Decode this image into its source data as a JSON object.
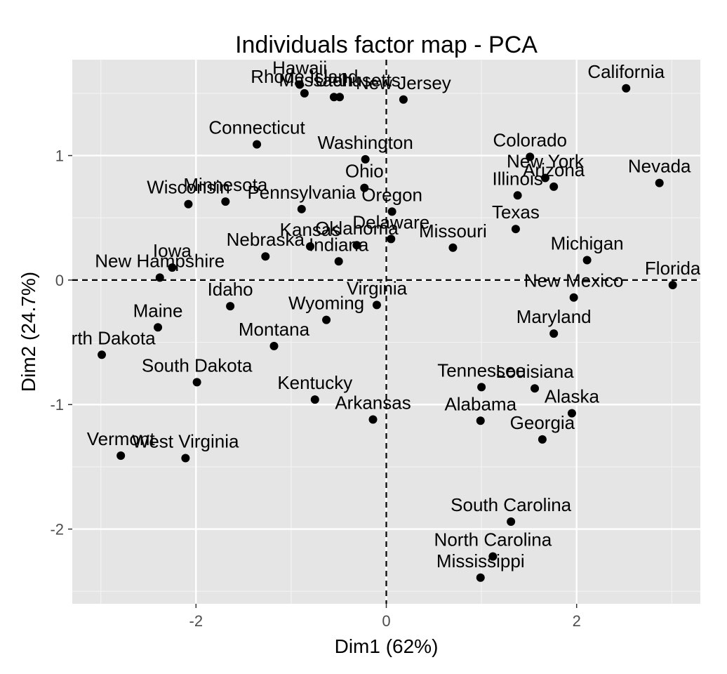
{
  "chart_data": {
    "type": "scatter",
    "title": "Individuals factor map - PCA",
    "xlabel": "Dim1 (62%)",
    "ylabel": "Dim2 (24.7%)",
    "xlim": [
      -3.3,
      3.3
    ],
    "ylim": [
      -2.6,
      1.77
    ],
    "xticks": [
      -2,
      0,
      2
    ],
    "yticks": [
      -2,
      -1,
      0,
      1
    ],
    "xtick_labels": [
      "-2",
      "0",
      "2"
    ],
    "ytick_labels": [
      "-2",
      "-1",
      "0",
      "1"
    ],
    "grid": true,
    "reference_lines": [
      {
        "axis": "x",
        "value": 0
      },
      {
        "axis": "y",
        "value": 0
      }
    ],
    "points": [
      {
        "label": "Alabama",
        "x": 0.99,
        "y": -1.13
      },
      {
        "label": "Alaska",
        "x": 1.95,
        "y": -1.07
      },
      {
        "label": "Arizona",
        "x": 1.76,
        "y": 0.75
      },
      {
        "label": "Arkansas",
        "x": -0.14,
        "y": -1.12
      },
      {
        "label": "California",
        "x": 2.52,
        "y": 1.54
      },
      {
        "label": "Colorado",
        "x": 1.51,
        "y": 0.99
      },
      {
        "label": "Connecticut",
        "x": -1.36,
        "y": 1.09
      },
      {
        "label": "Delaware",
        "x": 0.05,
        "y": 0.33
      },
      {
        "label": "Florida",
        "x": 3.01,
        "y": -0.04
      },
      {
        "label": "Georgia",
        "x": 1.64,
        "y": -1.28
      },
      {
        "label": "Hawaii",
        "x": -0.91,
        "y": 1.57
      },
      {
        "label": "Idaho",
        "x": -1.64,
        "y": -0.21
      },
      {
        "label": "Illinois",
        "x": 1.38,
        "y": 0.68
      },
      {
        "label": "Indiana",
        "x": -0.5,
        "y": 0.15
      },
      {
        "label": "Iowa",
        "x": -2.25,
        "y": 0.1
      },
      {
        "label": "Kansas",
        "x": -0.8,
        "y": 0.27
      },
      {
        "label": "Kentucky",
        "x": -0.75,
        "y": -0.96
      },
      {
        "label": "Louisiana",
        "x": 1.56,
        "y": -0.87
      },
      {
        "label": "Maine",
        "x": -2.4,
        "y": -0.38
      },
      {
        "label": "Maryland",
        "x": 1.76,
        "y": -0.43
      },
      {
        "label": "Massachusetts",
        "x": -0.49,
        "y": 1.47
      },
      {
        "label": "Michigan",
        "x": 2.11,
        "y": 0.16
      },
      {
        "label": "Minnesota",
        "x": -1.69,
        "y": 0.63
      },
      {
        "label": "Mississippi",
        "x": 0.99,
        "y": -2.39
      },
      {
        "label": "Missouri",
        "x": 0.7,
        "y": 0.26
      },
      {
        "label": "Montana",
        "x": -1.18,
        "y": -0.53
      },
      {
        "label": "Nebraska",
        "x": -1.27,
        "y": 0.19
      },
      {
        "label": "Nevada",
        "x": 2.87,
        "y": 0.78
      },
      {
        "label": "New Hampshire",
        "x": -2.38,
        "y": 0.02
      },
      {
        "label": "New Jersey",
        "x": 0.18,
        "y": 1.45
      },
      {
        "label": "New Mexico",
        "x": 1.97,
        "y": -0.14
      },
      {
        "label": "New York",
        "x": 1.67,
        "y": 0.82
      },
      {
        "label": "North Carolina",
        "x": 1.12,
        "y": -2.22
      },
      {
        "label": "North Dakota",
        "x": -2.99,
        "y": -0.6
      },
      {
        "label": "Ohio",
        "x": -0.23,
        "y": 0.74
      },
      {
        "label": "Oklahoma",
        "x": -0.31,
        "y": 0.28
      },
      {
        "label": "Oregon",
        "x": 0.06,
        "y": 0.55
      },
      {
        "label": "Pennsylvania",
        "x": -0.89,
        "y": 0.57
      },
      {
        "label": "Rhode Island",
        "x": -0.86,
        "y": 1.5
      },
      {
        "label": "South Carolina",
        "x": 1.31,
        "y": -1.94
      },
      {
        "label": "South Dakota",
        "x": -1.99,
        "y": -0.82
      },
      {
        "label": "Tennessee",
        "x": 1.0,
        "y": -0.86
      },
      {
        "label": "Texas",
        "x": 1.36,
        "y": 0.41
      },
      {
        "label": "Utah",
        "x": -0.55,
        "y": 1.47
      },
      {
        "label": "Vermont",
        "x": -2.79,
        "y": -1.41
      },
      {
        "label": "Virginia",
        "x": -0.1,
        "y": -0.2
      },
      {
        "label": "Washington",
        "x": -0.22,
        "y": 0.97
      },
      {
        "label": "West Virginia",
        "x": -2.11,
        "y": -1.43
      },
      {
        "label": "Wisconsin",
        "x": -2.08,
        "y": 0.61
      },
      {
        "label": "Wyoming",
        "x": -0.63,
        "y": -0.32
      }
    ]
  },
  "colors": {
    "panel_background": "#e5e5e5",
    "grid_major": "#ffffff",
    "grid_minor": "#f2f2f2",
    "point": "#000000",
    "text": "#000000",
    "tick_text": "#4d4d4d"
  }
}
